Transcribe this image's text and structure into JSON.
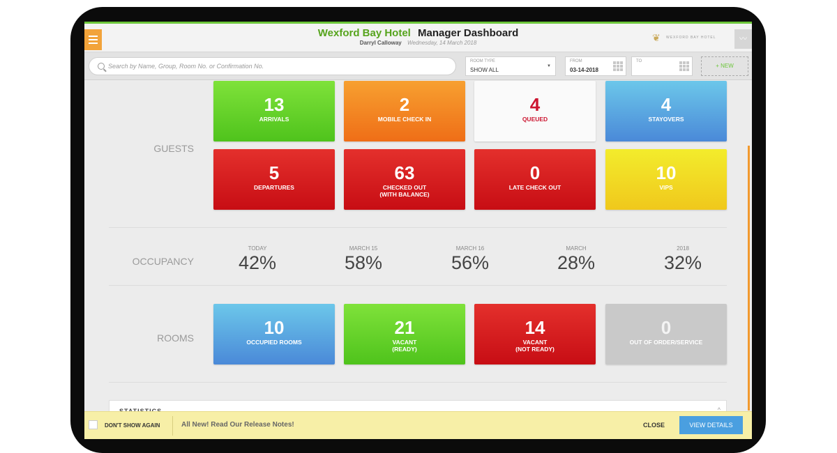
{
  "header": {
    "hotel_name": "Wexford Bay Hotel",
    "title": "Manager Dashboard",
    "manager": "Darryl Calloway",
    "date": "Wednesday, 14 March 2018",
    "logo_text": "WEXFORD BAY HOTEL"
  },
  "filters": {
    "search_placeholder": "Search by Name, Group, Room No. or Confirmation No.",
    "room_type_label": "ROOM TYPE",
    "room_type_value": "SHOW ALL",
    "from_label": "FROM",
    "from_value": "03-14-2018",
    "to_label": "TO",
    "to_value": "",
    "new_button": "+ NEW"
  },
  "guests": {
    "label": "GUESTS",
    "tiles": [
      {
        "value": "13",
        "label": "ARRIVALS",
        "color": "#5fd12a"
      },
      {
        "value": "2",
        "label": "MOBILE CHECK IN",
        "color": "#f28a24"
      },
      {
        "value": "4",
        "label": "QUEUED",
        "color": "#fafafa"
      },
      {
        "value": "4",
        "label": "STAYOVERS",
        "color": "#5aa8e0"
      },
      {
        "value": "5",
        "label": "DEPARTURES",
        "color": "#d41d20"
      },
      {
        "value": "63",
        "label": "CHECKED OUT\n(WITH BALANCE)",
        "color": "#d41d20"
      },
      {
        "value": "0",
        "label": "LATE CHECK OUT",
        "color": "#d41d20"
      },
      {
        "value": "10",
        "label": "VIPS",
        "color": "#f2da24"
      }
    ]
  },
  "occupancy": {
    "label": "OCCUPANCY",
    "items": [
      {
        "period": "TODAY",
        "value": "42%"
      },
      {
        "period": "MARCH 15",
        "value": "58%"
      },
      {
        "period": "MARCH 16",
        "value": "56%"
      },
      {
        "period": "MARCH",
        "value": "28%"
      },
      {
        "period": "2018",
        "value": "32%"
      }
    ]
  },
  "rooms": {
    "label": "ROOMS",
    "tiles": [
      {
        "value": "10",
        "label": "OCCUPIED ROOMS",
        "color": "#5aa8e0"
      },
      {
        "value": "21",
        "label": "VACANT\n(READY)",
        "color": "#5fd12a"
      },
      {
        "value": "14",
        "label": "VACANT\n(NOT READY)",
        "color": "#d41d20"
      },
      {
        "value": "0",
        "label": "OUT OF ORDER/SERVICE",
        "color": "#c9c9c9"
      }
    ]
  },
  "statistics": {
    "title": "STATISTICS",
    "toggle": "^"
  },
  "footer": {
    "dont_show": "DON'T SHOW AGAIN",
    "release_notes": "All New! Read Our Release Notes!",
    "close": "CLOSE",
    "view_details": "VIEW DETAILS"
  }
}
